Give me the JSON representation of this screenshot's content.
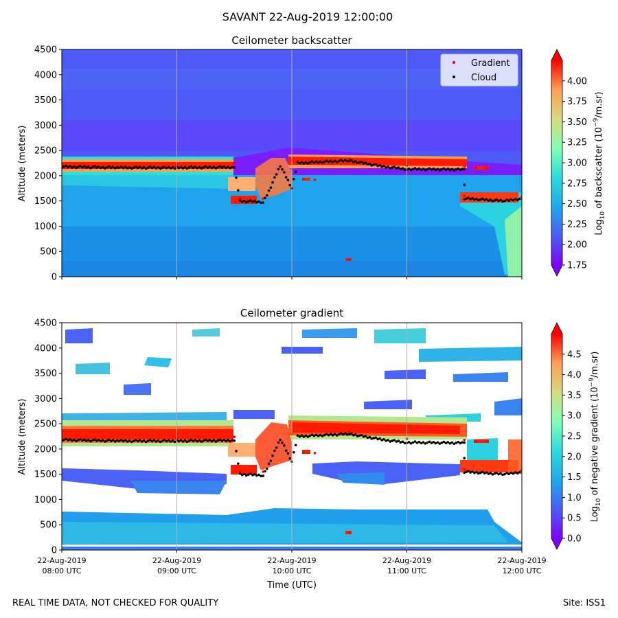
{
  "figure": {
    "suptitle": "SAVANT 22-Aug-2019 12:00:00",
    "footer_left": "REAL TIME DATA, NOT CHECKED FOR QUALITY",
    "footer_right": "Site: ISS1",
    "xlabel": "Time (UTC)"
  },
  "chart_data": [
    {
      "type": "heatmap",
      "title": "Ceilometer backscatter",
      "xlabel": "",
      "ylabel": "Altitude (meters)",
      "x_ticks": [
        {
          "line1": "22-Aug-2019",
          "line2": "08:00 UTC"
        },
        {
          "line1": "22-Aug-2019",
          "line2": "09:00 UTC"
        },
        {
          "line1": "22-Aug-2019",
          "line2": "10:00 UTC"
        },
        {
          "line1": "22-Aug-2019",
          "line2": "11:00 UTC"
        },
        {
          "line1": "22-Aug-2019",
          "line2": "12:00 UTC"
        }
      ],
      "xlim_hours": [
        8,
        12
      ],
      "ylim": [
        0,
        4500
      ],
      "yticks": [
        0,
        500,
        1000,
        1500,
        2000,
        2500,
        3000,
        3500,
        4000,
        4500
      ],
      "colormap": "rainbow",
      "colorbar": {
        "label": "Log10 of backscatter (10^-9/m.sr)",
        "range": [
          1.75,
          4.25
        ],
        "ticks": [
          "1.75",
          "2.00",
          "2.25",
          "2.50",
          "2.75",
          "3.00",
          "3.25",
          "3.50",
          "3.75",
          "4.00"
        ],
        "extend": "both"
      },
      "legend": {
        "placement": "top-right",
        "entries": [
          {
            "label": "Gradient",
            "color": "#ff0000"
          },
          {
            "label": "Cloud",
            "color": "#000000"
          }
        ]
      },
      "grid": "vertical"
    },
    {
      "type": "heatmap",
      "title": "Ceilometer gradient",
      "xlabel": "Time (UTC)",
      "ylabel": "Altitude (meters)",
      "xlim_hours": [
        8,
        12
      ],
      "ylim": [
        0,
        4500
      ],
      "yticks": [
        0,
        500,
        1000,
        1500,
        2000,
        2500,
        3000,
        3500,
        4000,
        4500
      ],
      "colormap": "rainbow",
      "colorbar": {
        "label": "Log10 of negative gradient (10^-9/m.sr)",
        "range": [
          0,
          5
        ],
        "ticks": [
          "0.0",
          "0.5",
          "1.0",
          "1.5",
          "2.0",
          "2.5",
          "3.0",
          "3.5",
          "4.0",
          "4.5"
        ],
        "extend": "both"
      },
      "grid": "vertical"
    }
  ],
  "layers": {
    "cloud_base": [
      [
        8.0,
        2180
      ],
      [
        8.5,
        2160
      ],
      [
        9.0,
        2160
      ],
      [
        9.5,
        2170
      ],
      [
        9.55,
        1500
      ],
      [
        9.75,
        1480
      ],
      [
        9.8,
        1700
      ],
      [
        9.9,
        2200
      ],
      [
        10.0,
        1750
      ],
      [
        10.05,
        2250
      ],
      [
        10.5,
        2300
      ],
      [
        10.8,
        2180
      ],
      [
        11.0,
        2130
      ],
      [
        11.5,
        2120
      ],
      [
        11.5,
        1550
      ],
      [
        11.85,
        1500
      ],
      [
        12.0,
        1550
      ]
    ],
    "gradient_points": [
      [
        8.0,
        2230
      ],
      [
        9.0,
        2210
      ],
      [
        9.5,
        2240
      ],
      [
        9.55,
        1560
      ],
      [
        9.75,
        1550
      ],
      [
        10.0,
        2300
      ],
      [
        10.5,
        2340
      ],
      [
        11.0,
        2200
      ],
      [
        11.5,
        2180
      ],
      [
        11.6,
        2150
      ],
      [
        11.7,
        2150
      ],
      [
        11.5,
        1600
      ],
      [
        12.0,
        1580
      ],
      [
        10.1,
        1930
      ],
      [
        10.2,
        1920
      ],
      [
        10.5,
        340
      ]
    ]
  }
}
